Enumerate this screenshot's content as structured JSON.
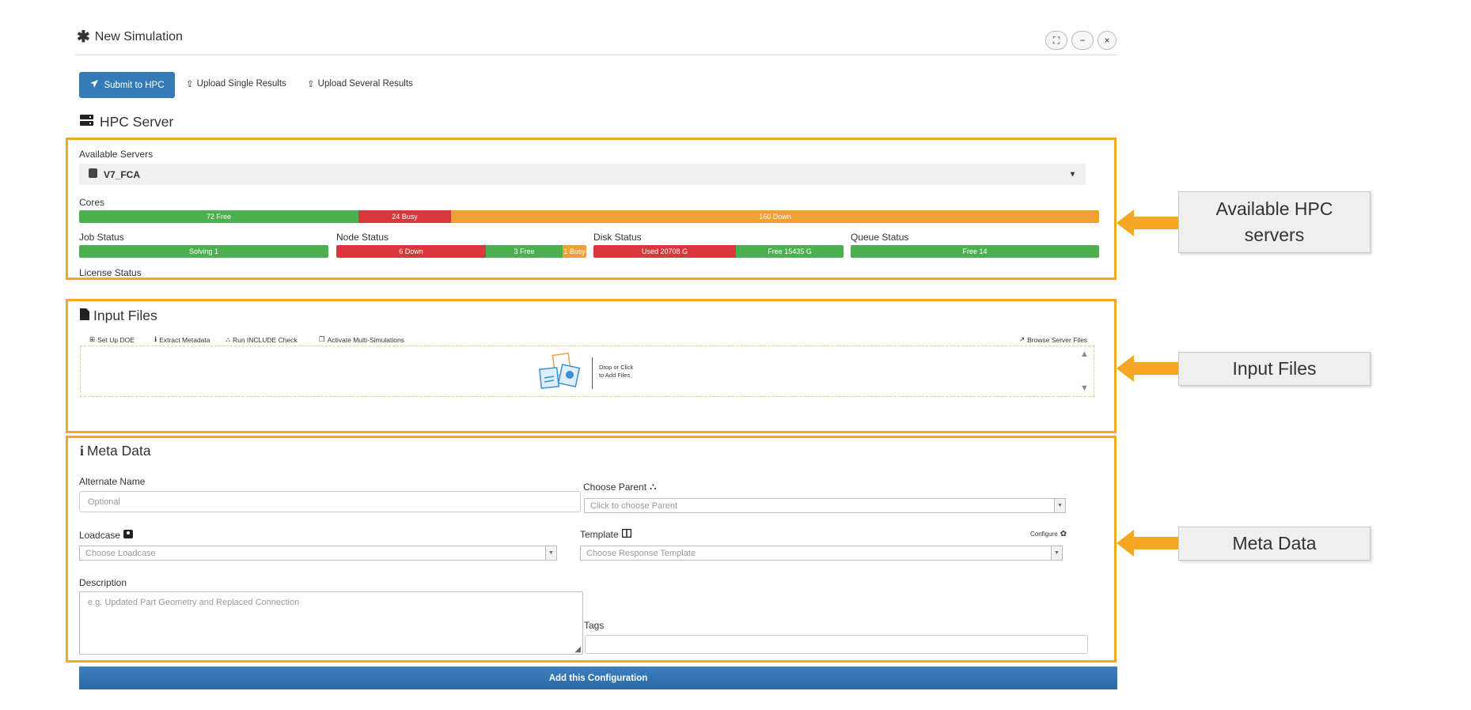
{
  "window": {
    "title": "New Simulation",
    "controls": [
      "expand-icon",
      "minimize-icon",
      "close-icon"
    ]
  },
  "toolbar": {
    "submit_label": "Submit to HPC",
    "upload_single_label": "Upload Single Results",
    "upload_several_label": "Upload Several Results"
  },
  "hpc": {
    "section_title": "HPC Server",
    "available_servers_label": "Available Servers",
    "selected_server": "V7_FCA",
    "cores_label": "Cores",
    "cores": {
      "free": "72 Free",
      "busy": "24 Busy",
      "down": "160 Down",
      "free_n": 72,
      "busy_n": 24,
      "down_n": 160
    },
    "job_status_label": "Job Status",
    "job_status": {
      "solving": "Solving 1"
    },
    "node_status_label": "Node Status",
    "node_status": {
      "down": "6 Down",
      "free": "3 Free",
      "busy": "1 Busy",
      "down_n": 6,
      "free_n": 3,
      "busy_n": 1
    },
    "disk_status_label": "Disk Status",
    "disk_status": {
      "used": "Used 20708 G",
      "free": "Free 15435 G",
      "used_n": 20708,
      "free_n": 15435
    },
    "queue_status_label": "Queue Status",
    "queue_status": {
      "free": "Free 14"
    },
    "license_status_label": "License Status"
  },
  "input_files": {
    "section_title": "Input Files",
    "setup_doe": "Set Up DOE",
    "extract_metadata": "Extract Metadata",
    "run_include_check": "Run INCLUDE Check",
    "activate_multi": "Activate Multi-Simulations",
    "browse_server": "Browse Server Files",
    "drop_line1": "Drop or Click",
    "drop_line2": "to Add Files"
  },
  "meta": {
    "section_title": "Meta Data",
    "alternate_name_label": "Alternate Name",
    "alternate_name_placeholder": "Optional",
    "choose_parent_label": "Choose Parent",
    "choose_parent_placeholder": "Click to choose Parent",
    "loadcase_label": "Loadcase",
    "loadcase_placeholder": "Choose Loadcase",
    "template_label": "Template",
    "template_placeholder": "Choose Response Template",
    "configure_label": "Configure",
    "description_label": "Description",
    "description_placeholder": "e.g. Updated Part Geometry and Replaced Connection",
    "tags_label": "Tags",
    "tags_value": ""
  },
  "add_config_label": "Add this Configuration",
  "callouts": {
    "hpc": "Available HPC servers",
    "input": "Input Files",
    "meta": "Meta Data"
  },
  "colors": {
    "accent": "#337ab7",
    "highlight_frame": "#f5a623",
    "free": "#4caf50",
    "busy": "#d9363e",
    "down": "#f0a030"
  }
}
